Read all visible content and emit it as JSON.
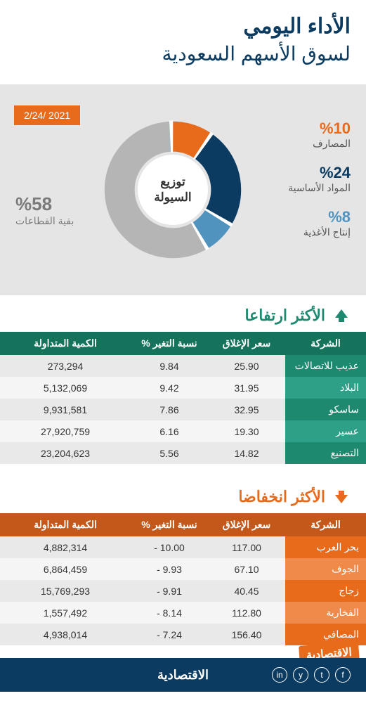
{
  "header": {
    "color": "#0b3b60",
    "line1": "الأداء اليومي",
    "line2": "لسوق الأسهم السعودية"
  },
  "date_chip": {
    "text": "2021 /2/24",
    "bg": "#e86b1c"
  },
  "donut": {
    "center_label": "توزيع\nالسيولة",
    "section_bg": "#e5e5e5",
    "gap_color": "#ffffff",
    "gap_deg": 3,
    "slices": [
      {
        "pct": 10,
        "label": "المصارف",
        "color": "#e86b1c"
      },
      {
        "pct": 24,
        "label": "المواد الأساسية",
        "color": "#0b3b60"
      },
      {
        "pct": 8,
        "label": "إنتاج الأغذية",
        "color": "#4f93be"
      },
      {
        "pct": 58,
        "label": "بقية القطاعات",
        "color": "#b5b5b5"
      }
    ]
  },
  "gainers": {
    "title": "الأكثر ارتفاعا",
    "title_color": "#1d8a6f",
    "icon_up": true,
    "head_bg": "#15735c",
    "row_dark": "#1d8a6f",
    "row_light": "#2ea087",
    "columns": [
      "الشركة",
      "سعر الإغلاق",
      "نسبة التغير %",
      "الكمية المتداولة"
    ],
    "rows": [
      [
        "عذيب للاتصالات",
        "25.90",
        "9.84",
        "273,294"
      ],
      [
        "البلاد",
        "31.95",
        "9.42",
        "5,132,069"
      ],
      [
        "ساسكو",
        "32.95",
        "7.86",
        "9,931,581"
      ],
      [
        "عسير",
        "19.30",
        "6.16",
        "27,920,759"
      ],
      [
        "التصنيع",
        "14.82",
        "5.56",
        "23,204,623"
      ]
    ]
  },
  "losers": {
    "title": "الأكثر انخفاضا",
    "title_color": "#e86b1c",
    "icon_up": false,
    "head_bg": "#c4571a",
    "row_dark": "#e86b1c",
    "row_light": "#f08a4a",
    "columns": [
      "الشركة",
      "سعر الإغلاق",
      "نسبة التغير %",
      "الكمية المتداولة"
    ],
    "rows": [
      [
        "بحر العرب",
        "117.00",
        "- 10.00",
        "4,882,314"
      ],
      [
        "الجوف",
        "67.10",
        "- 9.93",
        "6,864,459"
      ],
      [
        "زجاج",
        "40.45",
        "- 9.91",
        "15,769,293"
      ],
      [
        "الفخارية",
        "112.80",
        "- 8.14",
        "1,557,492"
      ],
      [
        "المصافي",
        "156.40",
        "- 7.24",
        "4,938,014"
      ]
    ]
  },
  "footer": {
    "brand": "الاقتصادية",
    "socials": [
      "f",
      "t",
      "y",
      "in"
    ],
    "tag": "الاقتصادية"
  }
}
